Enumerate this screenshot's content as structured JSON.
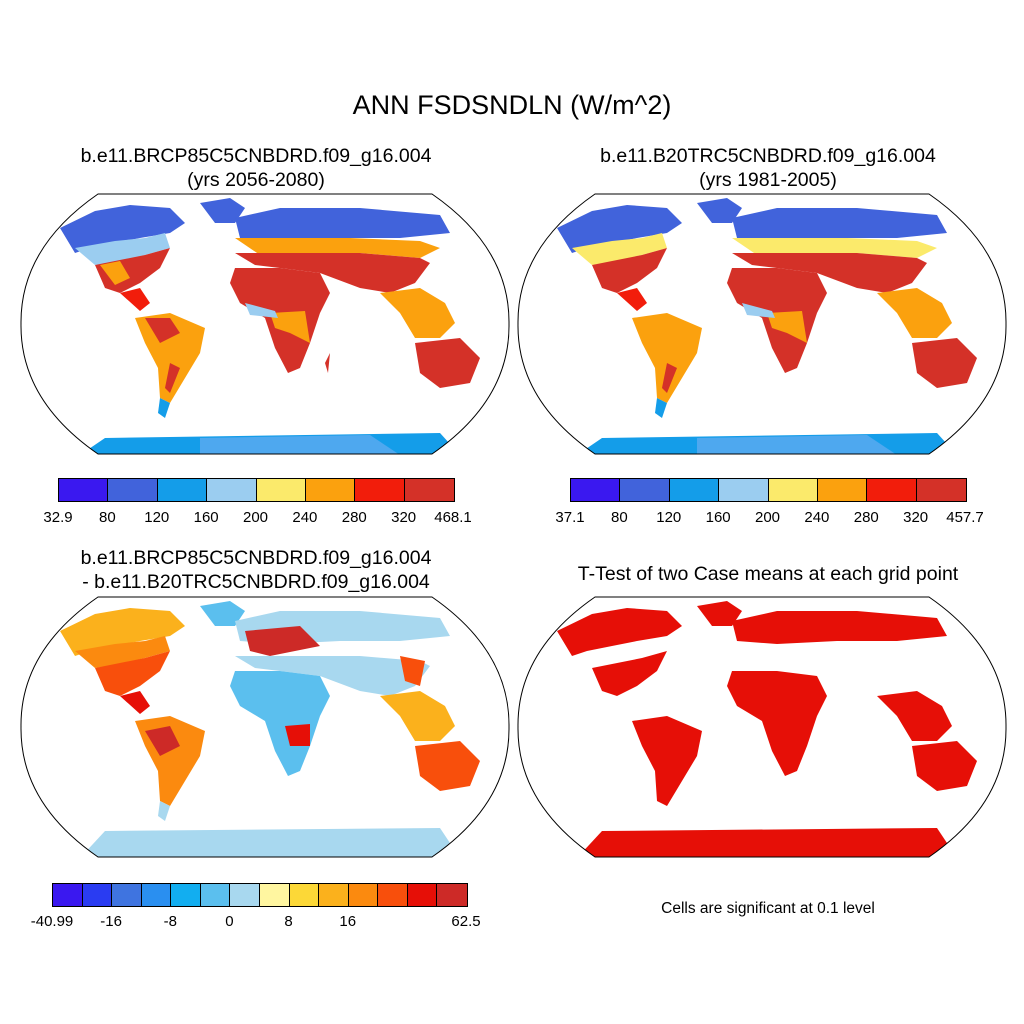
{
  "main_title": "ANN FSDSNDLN (W/m^2)",
  "panels": [
    {
      "title1": "b.e11.BRCP85C5CNBDRD.f09_g16.004",
      "title2": "(yrs 2056-2080)",
      "colorbar": {
        "colors": [
          "#3a18f0",
          "#4163db",
          "#149de9",
          "#9bcdf0",
          "#fbea6b",
          "#fba10e",
          "#f21d0b",
          "#d43128"
        ],
        "labels": [
          "32.9",
          "80",
          "120",
          "160",
          "200",
          "240",
          "280",
          "320",
          "468.1"
        ]
      }
    },
    {
      "title1": "b.e11.B20TRC5CNBDRD.f09_g16.004",
      "title2": "(yrs 1981-2005)",
      "colorbar": {
        "colors": [
          "#3a18f0",
          "#4163db",
          "#149de9",
          "#9bcdf0",
          "#fbea6b",
          "#fba10e",
          "#f21d0b",
          "#d43128"
        ],
        "labels": [
          "37.1",
          "80",
          "120",
          "160",
          "200",
          "240",
          "280",
          "320",
          "457.7"
        ]
      }
    },
    {
      "title1": "b.e11.BRCP85C5CNBDRD.f09_g16.004",
      "title2": "- b.e11.B20TRC5CNBDRD.f09_g16.004",
      "colorbar": {
        "colors": [
          "#3a18f0",
          "#2a3cf2",
          "#3f74e0",
          "#2a8ff0",
          "#12aef0",
          "#5bbfee",
          "#a8d8ef",
          "#fff6a0",
          "#fcd837",
          "#fbb11c",
          "#fb8a0f",
          "#f84f0c",
          "#e60f07",
          "#cd2a27"
        ],
        "labels": [
          "-40.99",
          "",
          "-16",
          "",
          "-8",
          "",
          "0",
          "",
          "8",
          "",
          "16",
          "",
          "",
          "",
          "62.5"
        ]
      }
    },
    {
      "title1": "T-Test of two Case means at each grid point",
      "note": "Cells are significant at 0.1 level"
    }
  ]
}
